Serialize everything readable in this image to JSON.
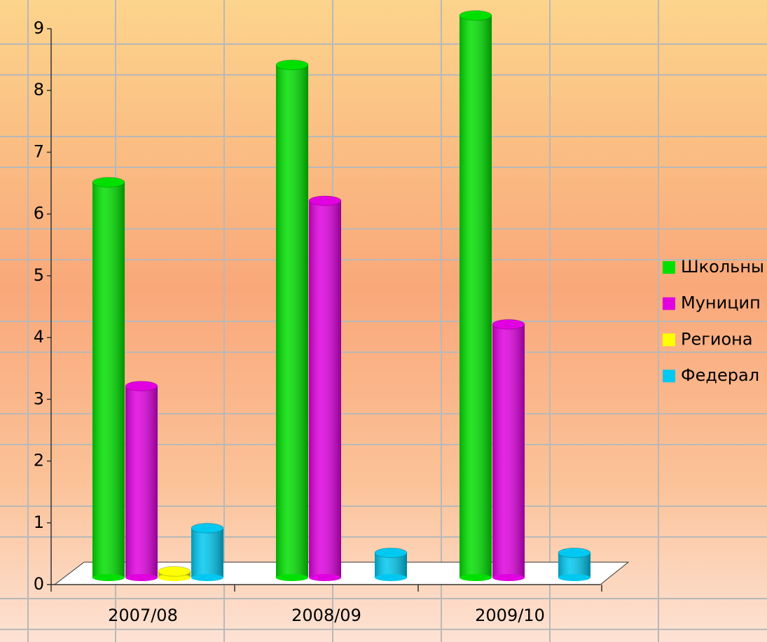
{
  "chart_data": {
    "type": "bar3d",
    "categories": [
      "2007/08",
      "2008/09",
      "2009/10"
    ],
    "series": [
      {
        "name": "Школьны",
        "color": "#00e000",
        "values": [
          6.4,
          8.3,
          9.1
        ]
      },
      {
        "name": "Муницип",
        "color": "#e000e0",
        "values": [
          3.1,
          6.1,
          4.1
        ]
      },
      {
        "name": "Региона",
        "color": "#ffff00",
        "values": [
          0.1,
          null,
          null
        ]
      },
      {
        "name": "Федерал",
        "color": "#00c8f0",
        "values": [
          0.8,
          0.4,
          0.4
        ]
      }
    ],
    "ylim": [
      0,
      9
    ],
    "yticks": [
      0,
      1,
      2,
      3,
      4,
      5,
      6,
      7,
      8,
      9
    ],
    "grid": true,
    "legend": "right"
  }
}
